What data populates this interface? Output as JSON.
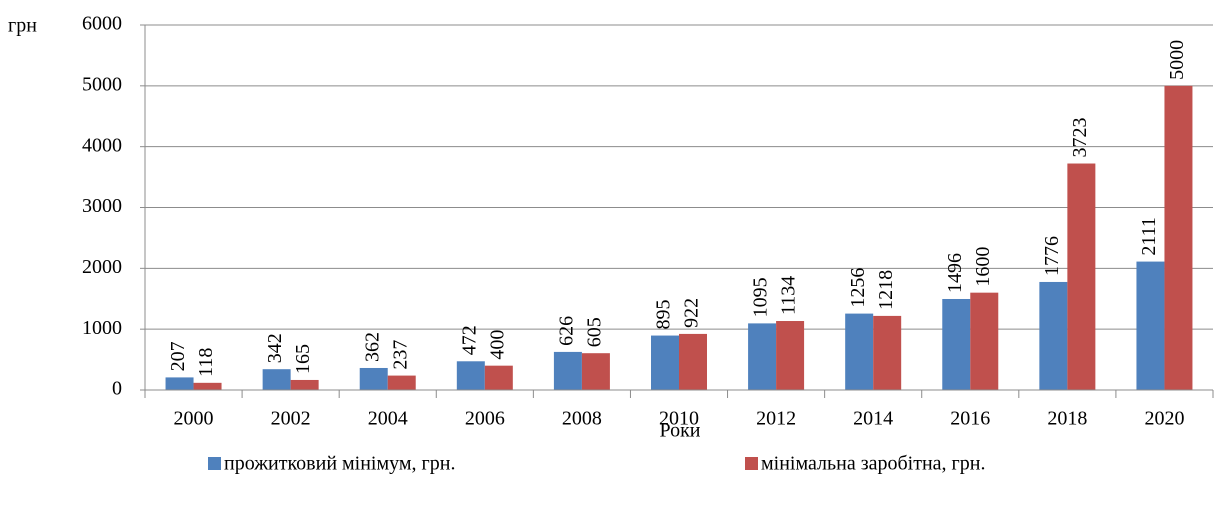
{
  "chart_data": {
    "type": "bar",
    "y_label": "грн",
    "x_label": "Роки",
    "categories": [
      "2000",
      "2002",
      "2004",
      "2006",
      "2008",
      "2010",
      "2012",
      "2014",
      "2016",
      "2018",
      "2020"
    ],
    "series": [
      {
        "name": "прожитковий мінімум, грн.",
        "color": "#4f81bd",
        "values": [
          207,
          342,
          362,
          472,
          626,
          895,
          1095,
          1256,
          1496,
          1776,
          2111
        ]
      },
      {
        "name": "мінімальна заробітна, грн.",
        "color": "#c0504d",
        "values": [
          118,
          165,
          237,
          400,
          605,
          922,
          1134,
          1218,
          1600,
          3723,
          5000
        ]
      }
    ],
    "ylim": [
      0,
      6000
    ],
    "yticks": [
      0,
      1000,
      2000,
      3000,
      4000,
      5000,
      6000
    ],
    "grid": true
  }
}
